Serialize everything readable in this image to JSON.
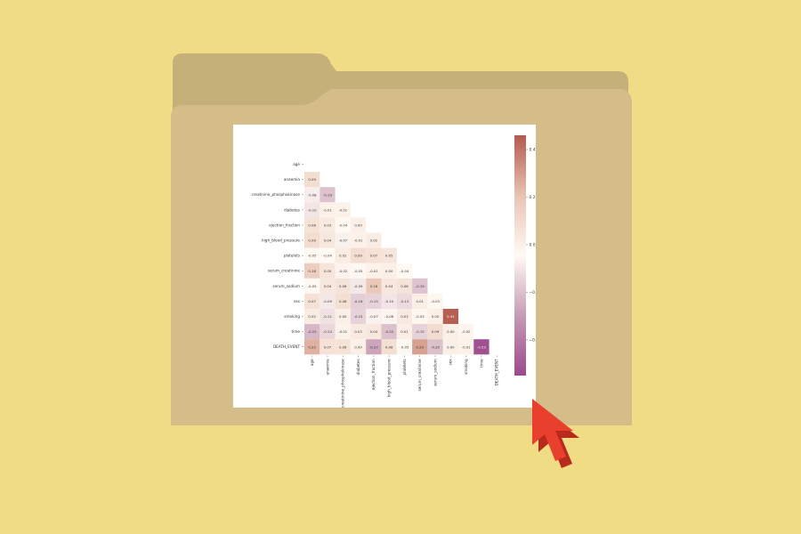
{
  "colors": {
    "background": "#f0dc84",
    "folder_back": "#c6b07a",
    "folder_front": "#d4bd88",
    "cursor": "#e8402c",
    "cursor_dark": "#b82a1c"
  },
  "cursor": {
    "icon": "arrow-pointer-icon"
  },
  "chart_data": {
    "type": "heatmap",
    "variables": [
      "age",
      "anaemia",
      "creatinine_phosphokinase",
      "diabetes",
      "ejection_fraction",
      "high_blood_pressure",
      "platelets",
      "serum_creatinine",
      "serum_sodium",
      "sex",
      "smoking",
      "time",
      "DEATH_EVENT"
    ],
    "x_tick_labels": [
      "age",
      "anaemia",
      "creatinine_phosphokinase",
      "diabetes",
      "ejection_fraction",
      "high_blood_pressure",
      "platelets",
      "serum_creatinine",
      "serum_sodium",
      "sex",
      "smoking",
      "time",
      "DEATH_EVENT"
    ],
    "lower_triangle_values": [
      [],
      [
        0.09
      ],
      [
        -0.08,
        -0.19
      ],
      [
        -0.1,
        -0.01,
        -0.01
      ],
      [
        0.06,
        0.03,
        -0.04,
        -0.0
      ],
      [
        0.09,
        0.04,
        -0.07,
        -0.01,
        0.02
      ],
      [
        -0.05,
        -0.04,
        0.02,
        0.09,
        0.07,
        0.05
      ],
      [
        0.16,
        0.05,
        -0.02,
        -0.05,
        -0.01,
        -0.0,
        -0.04
      ],
      [
        -0.05,
        0.04,
        0.06,
        -0.09,
        0.18,
        0.04,
        0.06,
        -0.19
      ],
      [
        0.07,
        -0.09,
        0.08,
        -0.16,
        -0.15,
        -0.1,
        -0.13,
        0.01,
        -0.03
      ],
      [
        0.02,
        -0.11,
        0.0,
        -0.15,
        -0.07,
        -0.06,
        0.03,
        -0.03,
        0.0,
        0.45
      ],
      [
        -0.22,
        -0.14,
        -0.01,
        0.03,
        0.04,
        -0.2,
        0.01,
        -0.15,
        0.09,
        -0.0,
        -0.02
      ],
      [
        0.25,
        0.07,
        0.06,
        -0.0,
        -0.27,
        0.08,
        -0.05,
        0.29,
        -0.2,
        -0.0,
        -0.01,
        -0.53
      ]
    ],
    "value_range": [
      -0.55,
      0.46
    ],
    "colorbar_ticks": [
      0.4,
      0.2,
      0.0,
      -0.2,
      -0.4
    ],
    "colorbar_tick_labels": [
      "0.4",
      "0.2",
      "0.0",
      "−0.2",
      "−0.4"
    ],
    "colormap": [
      "#9b4a8d",
      "#c69bb4",
      "#fffaf3",
      "#e8c3b2",
      "#b45a4e"
    ],
    "mask": "upper-triangle-and-diagonal",
    "title": "",
    "xlabel": "",
    "ylabel": ""
  }
}
